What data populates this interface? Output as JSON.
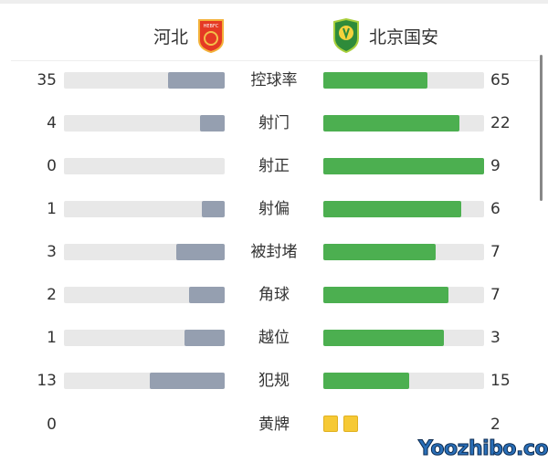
{
  "teams": {
    "home": {
      "name": "河北",
      "logo_text": "HEBFC"
    },
    "away": {
      "name": "北京国安",
      "logo_text": "GUOAN"
    }
  },
  "colors": {
    "home_bar": "#959fb0",
    "away_bar": "#4caf50",
    "track": "#e8e8e8",
    "yellow_card": "#f6c935"
  },
  "stats": [
    {
      "label": "控球率",
      "home": "35",
      "away": "65",
      "home_share": 0.35,
      "away_share": 0.65
    },
    {
      "label": "射门",
      "home": "4",
      "away": "22",
      "home_share": 0.154,
      "away_share": 0.846
    },
    {
      "label": "射正",
      "home": "0",
      "away": "9",
      "home_share": 0,
      "away_share": 1
    },
    {
      "label": "射偏",
      "home": "1",
      "away": "6",
      "home_share": 0.143,
      "away_share": 0.857
    },
    {
      "label": "被封堵",
      "home": "3",
      "away": "7",
      "home_share": 0.3,
      "away_share": 0.7
    },
    {
      "label": "角球",
      "home": "2",
      "away": "7",
      "home_share": 0.222,
      "away_share": 0.778
    },
    {
      "label": "越位",
      "home": "1",
      "away": "3",
      "home_share": 0.25,
      "away_share": 0.75
    },
    {
      "label": "犯规",
      "home": "13",
      "away": "15",
      "home_share": 0.464,
      "away_share": 0.536
    }
  ],
  "yellow": {
    "label": "黄牌",
    "home": "0",
    "away": "2",
    "away_cards": 2
  },
  "watermark": "Yoozhibo.com"
}
